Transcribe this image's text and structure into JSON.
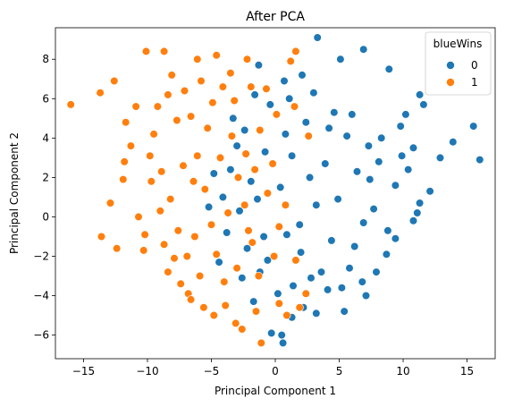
{
  "chart_data": {
    "type": "scatter",
    "title": "After PCA",
    "xlabel": "Principal Component 1",
    "ylabel": "Principal Component 2",
    "xlim": [
      -17.2,
      17.2
    ],
    "ylim": [
      -7.2,
      9.6
    ],
    "xticks": [
      -15,
      -10,
      -5,
      0,
      5,
      10,
      15
    ],
    "yticks": [
      -6,
      -4,
      -2,
      0,
      2,
      4,
      6,
      8
    ],
    "grid": false,
    "legend": {
      "title": "blueWins",
      "placement": "top-right"
    },
    "series": [
      {
        "name": "0",
        "color": "#1f77b4",
        "points": [
          [
            3.3,
            9.1
          ],
          [
            6.9,
            8.5
          ],
          [
            5.1,
            8.0
          ],
          [
            -1.3,
            7.7
          ],
          [
            8.9,
            7.5
          ],
          [
            2.1,
            7.2
          ],
          [
            0.7,
            6.9
          ],
          [
            11.3,
            6.2
          ],
          [
            11.6,
            5.7
          ],
          [
            10.2,
            5.2
          ],
          [
            15.5,
            4.6
          ],
          [
            13.9,
            3.8
          ],
          [
            12.9,
            3.0
          ],
          [
            16.0,
            2.9
          ],
          [
            9.8,
            4.6
          ],
          [
            10.8,
            3.5
          ],
          [
            12.1,
            1.3
          ],
          [
            11.3,
            0.7
          ],
          [
            10.8,
            -0.2
          ],
          [
            11.1,
            0.2
          ],
          [
            9.4,
            -1.1
          ],
          [
            8.7,
            -1.9
          ],
          [
            7.9,
            -2.8
          ],
          [
            6.8,
            -3.3
          ],
          [
            7.1,
            -4.0
          ],
          [
            5.4,
            -4.8
          ],
          [
            3.2,
            -4.9
          ],
          [
            1.3,
            -5.1
          ],
          [
            0.5,
            -6.0
          ],
          [
            0.6,
            -6.4
          ],
          [
            -0.3,
            -5.9
          ],
          [
            2.2,
            -4.6
          ],
          [
            4.1,
            -3.7
          ],
          [
            6.2,
            -1.5
          ],
          [
            7.4,
            1.9
          ],
          [
            8.3,
            4.0
          ],
          [
            4.6,
            5.3
          ],
          [
            3.0,
            6.3
          ],
          [
            1.1,
            6.0
          ],
          [
            -0.4,
            5.7
          ],
          [
            -1.6,
            6.2
          ],
          [
            -2.4,
            4.4
          ],
          [
            -3.0,
            3.6
          ],
          [
            -3.5,
            2.4
          ],
          [
            -4.1,
            1.0
          ],
          [
            -2.8,
            0.3
          ],
          [
            -3.8,
            -0.8
          ],
          [
            -4.4,
            -2.3
          ],
          [
            -2.6,
            -3.1
          ],
          [
            -1.7,
            -4.3
          ],
          [
            -0.6,
            -2.2
          ],
          [
            0.4,
            1.5
          ],
          [
            1.3,
            3.1
          ],
          [
            2.4,
            4.8
          ],
          [
            3.9,
            2.7
          ],
          [
            5.6,
            4.1
          ],
          [
            6.4,
            2.3
          ],
          [
            7.7,
            0.4
          ],
          [
            8.8,
            -0.7
          ],
          [
            5.8,
            -2.6
          ],
          [
            4.4,
            -1.2
          ],
          [
            3.2,
            0.6
          ],
          [
            2.0,
            -1.8
          ],
          [
            1.4,
            -3.5
          ],
          [
            0.2,
            -3.9
          ],
          [
            -0.9,
            -1.0
          ],
          [
            -1.9,
            1.8
          ],
          [
            -0.8,
            3.3
          ],
          [
            0.8,
            4.2
          ],
          [
            2.7,
            2.0
          ],
          [
            4.9,
            0.9
          ],
          [
            6.9,
            -0.3
          ],
          [
            8.1,
            2.8
          ],
          [
            9.4,
            1.6
          ],
          [
            7.3,
            3.6
          ],
          [
            4.2,
            4.5
          ],
          [
            1.9,
            -0.4
          ],
          [
            3.6,
            -2.8
          ],
          [
            5.2,
            -3.6
          ],
          [
            2.8,
            -3.1
          ],
          [
            -1.2,
            -2.8
          ],
          [
            -2.2,
            -1.6
          ],
          [
            -1.4,
            0.9
          ],
          [
            0.9,
            -0.9
          ],
          [
            6.0,
            5.2
          ],
          [
            9.9,
            3.1
          ],
          [
            10.4,
            2.4
          ],
          [
            -5.2,
            0.5
          ],
          [
            -4.8,
            2.2
          ],
          [
            -3.3,
            5.0
          ]
        ]
      },
      {
        "name": "1",
        "color": "#ff7f0e",
        "points": [
          [
            -16.0,
            5.7
          ],
          [
            -13.7,
            6.3
          ],
          [
            -12.6,
            6.9
          ],
          [
            -10.1,
            8.4
          ],
          [
            -8.7,
            8.4
          ],
          [
            -6.1,
            8.0
          ],
          [
            -4.6,
            8.2
          ],
          [
            -2.2,
            8.0
          ],
          [
            1.6,
            8.4
          ],
          [
            1.2,
            7.9
          ],
          [
            -13.6,
            -1.0
          ],
          [
            -12.4,
            -1.6
          ],
          [
            -10.3,
            -1.7
          ],
          [
            -12.9,
            0.7
          ],
          [
            -11.8,
            2.8
          ],
          [
            -11.7,
            4.8
          ],
          [
            -11.9,
            1.9
          ],
          [
            -10.7,
            0.0
          ],
          [
            -9.8,
            3.1
          ],
          [
            -10.2,
            -0.9
          ],
          [
            -8.4,
            -2.8
          ],
          [
            -7.4,
            -3.4
          ],
          [
            -6.8,
            -3.9
          ],
          [
            -5.6,
            -4.6
          ],
          [
            -4.8,
            -5.0
          ],
          [
            -3.1,
            -5.4
          ],
          [
            -2.6,
            -5.7
          ],
          [
            -1.1,
            -6.4
          ],
          [
            0.3,
            -4.4
          ],
          [
            0.9,
            -5.0
          ],
          [
            -9.2,
            5.6
          ],
          [
            -8.1,
            7.2
          ],
          [
            -7.1,
            6.4
          ],
          [
            -6.6,
            5.1
          ],
          [
            -5.8,
            6.9
          ],
          [
            -4.1,
            6.6
          ],
          [
            -3.5,
            7.3
          ],
          [
            -1.9,
            6.6
          ],
          [
            -0.7,
            6.5
          ],
          [
            0.1,
            5.2
          ],
          [
            1.5,
            5.6
          ],
          [
            2.6,
            4.1
          ],
          [
            -9.5,
            4.2
          ],
          [
            -8.9,
            2.3
          ],
          [
            -8.2,
            0.9
          ],
          [
            -7.6,
            -0.7
          ],
          [
            -6.9,
            -2.0
          ],
          [
            -6.1,
            3.1
          ],
          [
            -5.5,
            1.4
          ],
          [
            -5.0,
            -0.4
          ],
          [
            -4.6,
            -1.9
          ],
          [
            -4.0,
            -3.3
          ],
          [
            -3.4,
            4.1
          ],
          [
            -2.9,
            2.0
          ],
          [
            -2.4,
            0.6
          ],
          [
            -1.8,
            -1.3
          ],
          [
            -1.3,
            -3.0
          ],
          [
            -0.6,
            1.2
          ],
          [
            0.3,
            -0.5
          ],
          [
            -7.7,
            4.9
          ],
          [
            -6.4,
            1.8
          ],
          [
            -5.3,
            4.5
          ],
          [
            -4.3,
            3.0
          ],
          [
            -3.7,
            0.2
          ],
          [
            -2.1,
            -0.7
          ],
          [
            -8.7,
            -1.4
          ],
          [
            -7.2,
            2.6
          ],
          [
            -6.3,
            -1.0
          ],
          [
            -5.9,
            -3.0
          ],
          [
            -3.0,
            -2.6
          ],
          [
            -2.3,
            3.2
          ],
          [
            -1.2,
            4.4
          ],
          [
            -0.2,
            2.7
          ],
          [
            0.8,
            0.6
          ],
          [
            1.6,
            -2.2
          ],
          [
            2.4,
            -3.9
          ],
          [
            -10.9,
            5.6
          ],
          [
            -11.3,
            3.6
          ],
          [
            -9.0,
            0.3
          ],
          [
            -7.9,
            -2.1
          ],
          [
            -6.6,
            -4.2
          ],
          [
            -4.9,
            5.8
          ],
          [
            -3.2,
            5.9
          ],
          [
            -1.6,
            2.4
          ],
          [
            -0.1,
            -2.0
          ],
          [
            1.9,
            -4.6
          ],
          [
            -8.4,
            6.2
          ],
          [
            -9.7,
            1.8
          ],
          [
            -3.9,
            -4.5
          ],
          [
            -1.5,
            -4.8
          ]
        ]
      }
    ]
  }
}
